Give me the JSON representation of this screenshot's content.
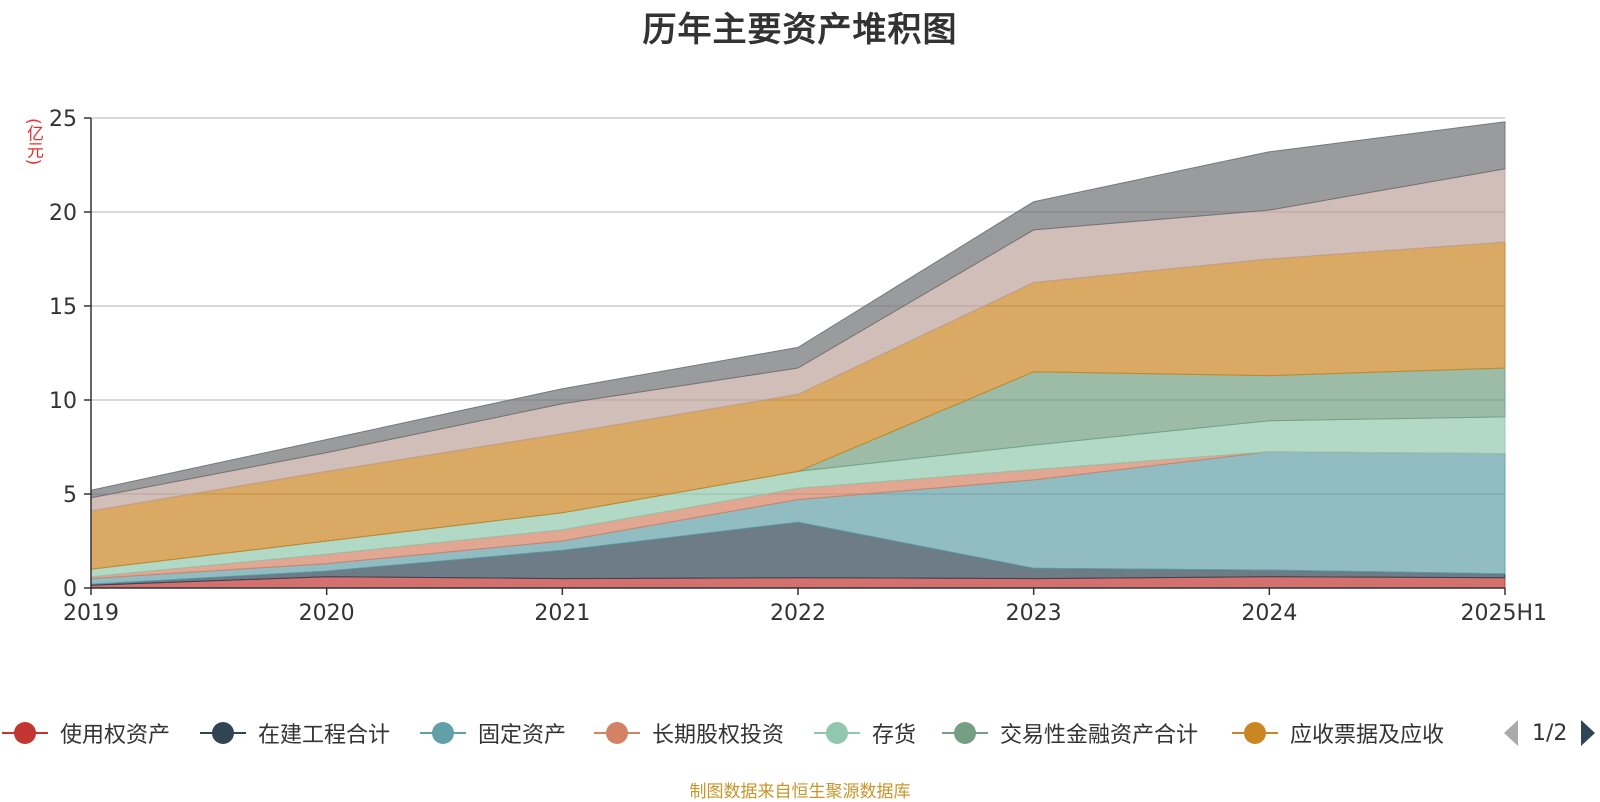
{
  "chart_data": {
    "type": "area",
    "title": "历年主要资产堆积图",
    "ylabel": "(亿元)",
    "xlabel": "",
    "x": [
      "2019",
      "2020",
      "2021",
      "2022",
      "2023",
      "2024",
      "2025H1"
    ],
    "ylim": [
      0,
      25
    ],
    "yticks": [
      "0",
      "5",
      "10",
      "15",
      "20",
      "25"
    ],
    "grid": true,
    "stacked": true,
    "series": [
      {
        "name": "使用权资产",
        "color": "#c23531",
        "values": [
          0.15,
          0.6,
          0.5,
          0.55,
          0.5,
          0.6,
          0.55
        ]
      },
      {
        "name": "在建工程合计",
        "color": "#2f4554",
        "values": [
          0.05,
          0.3,
          1.5,
          2.95,
          0.55,
          0.35,
          0.2
        ]
      },
      {
        "name": "固定资产",
        "color": "#61a0a8",
        "values": [
          0.3,
          0.4,
          0.5,
          1.2,
          4.7,
          6.3,
          6.4
        ]
      },
      {
        "name": "长期股权投资",
        "color": "#d48265",
        "values": [
          0.1,
          0.5,
          0.6,
          0.6,
          0.55,
          0.0,
          0.0
        ]
      },
      {
        "name": "存货",
        "color": "#91c7ae",
        "values": [
          0.4,
          0.7,
          0.9,
          0.9,
          1.3,
          1.65,
          1.95
        ]
      },
      {
        "name": "交易性金融资产合计",
        "color": "#749f83",
        "values": [
          0.0,
          0.0,
          0.0,
          0.0,
          3.9,
          2.4,
          2.6
        ]
      },
      {
        "name": "应收票据及应收",
        "color": "#ca8622",
        "values": [
          3.1,
          3.7,
          4.2,
          4.1,
          4.75,
          6.2,
          6.7
        ]
      },
      {
        "name": "",
        "color": "#bda29a",
        "values": [
          0.7,
          1.0,
          1.6,
          1.4,
          2.8,
          2.6,
          3.9
        ]
      },
      {
        "name": "",
        "color": "#6e7074",
        "values": [
          0.4,
          0.7,
          0.8,
          1.1,
          1.5,
          3.1,
          2.5
        ]
      }
    ]
  },
  "legend": {
    "items": [
      {
        "label": "使用权资产",
        "color": "#c23531"
      },
      {
        "label": "在建工程合计",
        "color": "#2f4554"
      },
      {
        "label": "固定资产",
        "color": "#61a0a8"
      },
      {
        "label": "长期股权投资",
        "color": "#d48265"
      },
      {
        "label": "存货",
        "color": "#91c7ae"
      },
      {
        "label": "交易性金融资产合计",
        "color": "#749f83"
      },
      {
        "label": "应收票据及应收",
        "color": "#ca8622"
      }
    ],
    "page_indicator": "1/2"
  },
  "footer": {
    "source_text": "制图数据来自恒生聚源数据库"
  }
}
